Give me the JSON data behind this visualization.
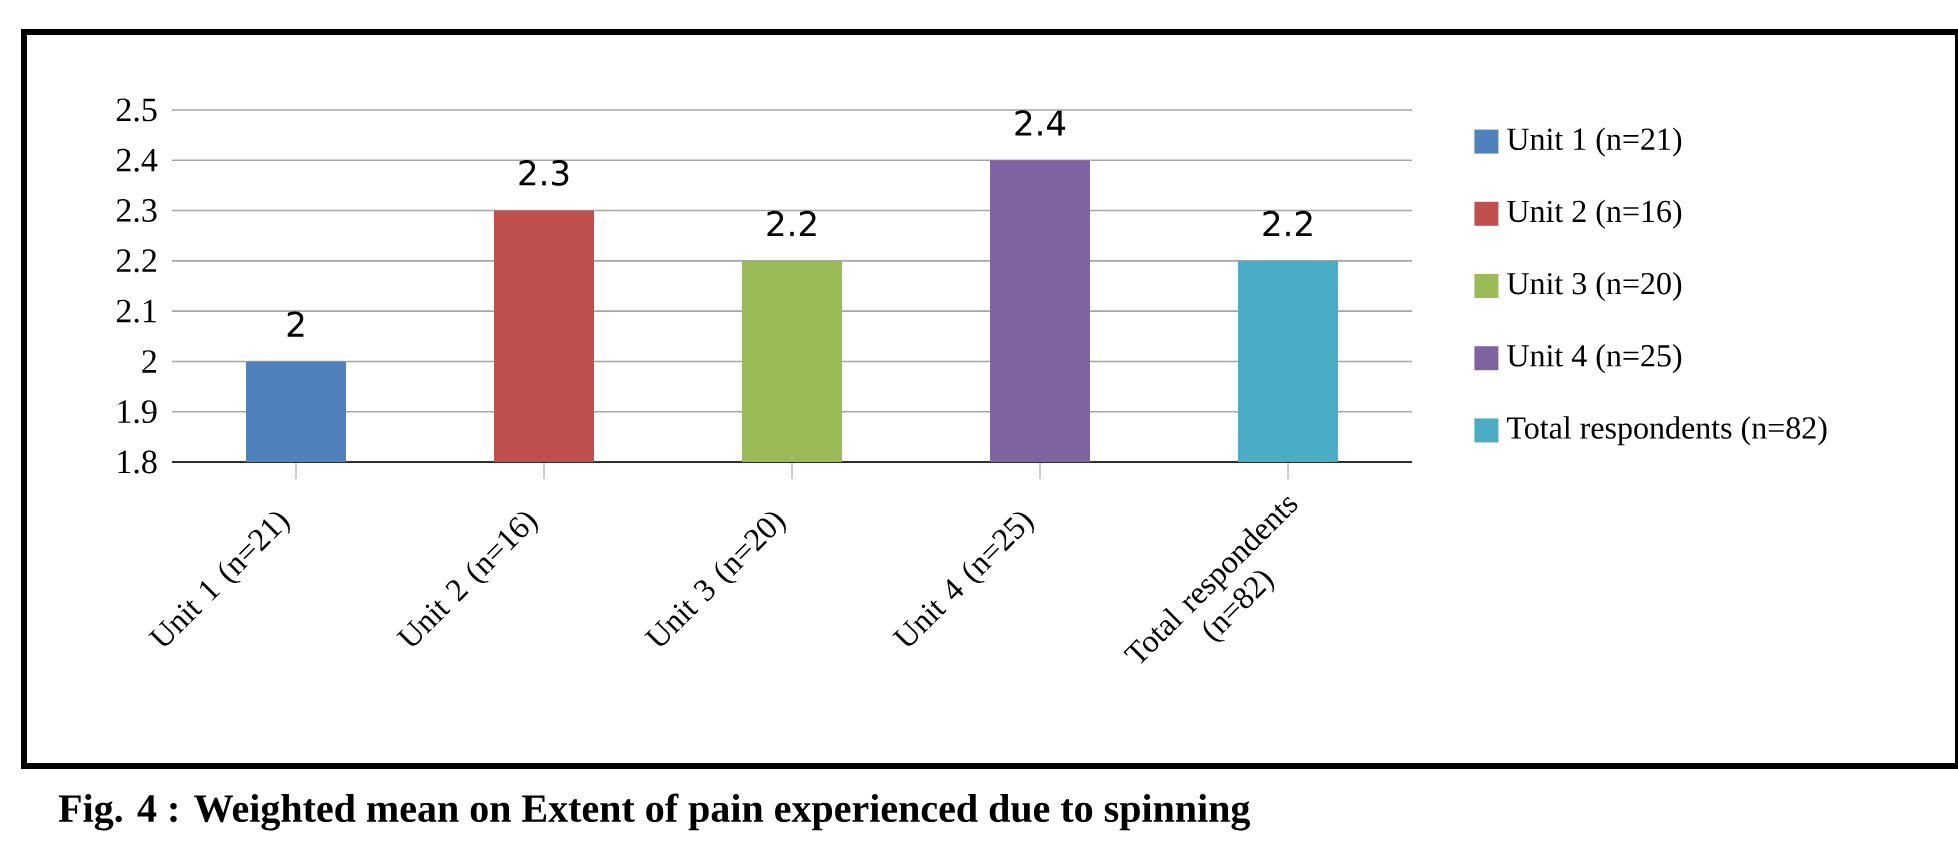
{
  "chart_data": {
    "type": "bar",
    "categories": [
      "Unit 1 (n=21)",
      "Unit 2 (n=16)",
      "Unit 3 (n=20)",
      "Unit 4 (n=25)",
      "Total respondents (n=82)"
    ],
    "series": [
      {
        "name": "Unit 1 (n=21)",
        "color": "#4f81bd",
        "values": [
          2,
          null,
          null,
          null,
          null
        ]
      },
      {
        "name": "Unit 2 (n=16)",
        "color": "#c0504d",
        "values": [
          null,
          2.3,
          null,
          null,
          null
        ]
      },
      {
        "name": "Unit 3 (n=20)",
        "color": "#9bbb59",
        "values": [
          null,
          null,
          2.2,
          null,
          null
        ]
      },
      {
        "name": "Unit 4 (n=25)",
        "color": "#8064a2",
        "values": [
          null,
          null,
          null,
          2.4,
          null
        ]
      },
      {
        "name": "Total respondents (n=82)",
        "color": "#4bacc6",
        "values": [
          null,
          null,
          null,
          null,
          2.2
        ]
      }
    ],
    "ylim": [
      1.8,
      2.5
    ],
    "yticks": [
      1.8,
      1.9,
      2,
      2.1,
      2.2,
      2.3,
      2.4,
      2.5
    ],
    "grid": "y",
    "legend": "right",
    "data_labels": true,
    "annotations": [
      "**Fig. 4 :    Weighted mean on Extent of pain experienced due to spinning**"
    ]
  }
}
